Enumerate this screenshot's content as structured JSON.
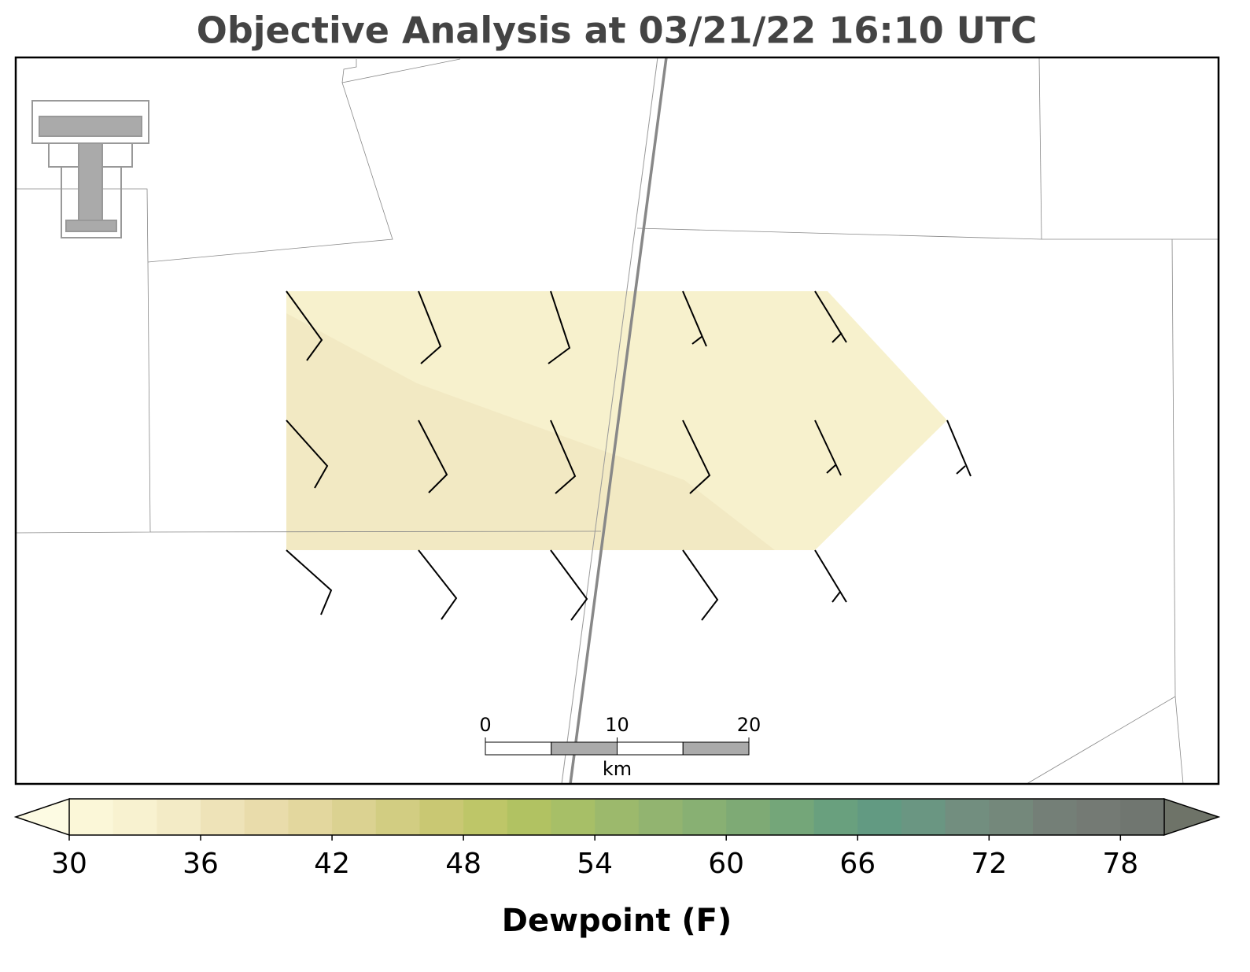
{
  "title": "Objective Analysis at 03/21/22 16:10 UTC",
  "colorbar": {
    "label": "Dewpoint (F)",
    "range": [
      30,
      80
    ],
    "ticks": [
      30,
      36,
      42,
      48,
      54,
      60,
      66,
      72,
      78
    ],
    "colors": [
      "#fbf7d8",
      "#f8f2d0",
      "#f3ebc6",
      "#eee3b8",
      "#e9dcab",
      "#e3d79e",
      "#dbd291",
      "#d2cd82",
      "#c9c873",
      "#bec668",
      "#b1c262",
      "#a7bf67",
      "#9cb96c",
      "#92b470",
      "#88b073",
      "#7eaa75",
      "#74a679",
      "#69a07e",
      "#629a82",
      "#6a9682",
      "#728e7f",
      "#74887b",
      "#747f77",
      "#747a74",
      "#707670"
    ],
    "under_color": "#fdfbe3",
    "over_color": "#6e7368"
  },
  "scale_bar": {
    "ticks": [
      0,
      10,
      20
    ],
    "unit": "km"
  }
}
